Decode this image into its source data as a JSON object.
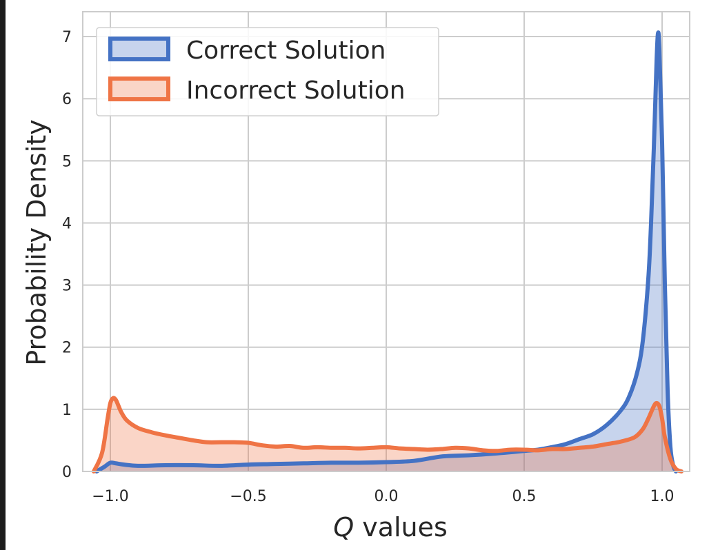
{
  "chart_data": {
    "type": "area",
    "title": "",
    "xlabel_var": "Q",
    "xlabel_rest": " values",
    "ylabel": "Probability Density",
    "xlim": [
      -1.1,
      1.1
    ],
    "ylim": [
      0,
      7.4
    ],
    "xticks": [
      -1.0,
      -0.5,
      0.0,
      0.5,
      1.0
    ],
    "xtick_labels": [
      "−1.0",
      "−0.5",
      "0.0",
      "0.5",
      "1.0"
    ],
    "yticks": [
      0,
      1,
      2,
      3,
      4,
      5,
      6,
      7
    ],
    "ytick_labels": [
      "0",
      "1",
      "2",
      "3",
      "4",
      "5",
      "6",
      "7"
    ],
    "grid": true,
    "legend_position": "top-left",
    "series": [
      {
        "name": "Correct Solution",
        "line_color": "#4472c4",
        "fill_color": "#4472c4",
        "x": [
          -1.05,
          -1.02,
          -1.0,
          -0.98,
          -0.95,
          -0.9,
          -0.8,
          -0.7,
          -0.6,
          -0.5,
          -0.4,
          -0.3,
          -0.2,
          -0.1,
          0.0,
          0.1,
          0.2,
          0.3,
          0.4,
          0.5,
          0.55,
          0.6,
          0.65,
          0.7,
          0.75,
          0.8,
          0.85,
          0.88,
          0.91,
          0.93,
          0.95,
          0.96,
          0.97,
          0.98,
          0.985,
          0.99,
          1.0,
          1.01,
          1.02,
          1.03,
          1.04,
          1.05
        ],
        "y": [
          0.0,
          0.08,
          0.14,
          0.13,
          0.11,
          0.09,
          0.1,
          0.1,
          0.09,
          0.11,
          0.12,
          0.13,
          0.14,
          0.14,
          0.15,
          0.17,
          0.24,
          0.26,
          0.29,
          0.33,
          0.35,
          0.39,
          0.44,
          0.52,
          0.6,
          0.75,
          0.98,
          1.2,
          1.6,
          2.1,
          3.1,
          4.0,
          5.2,
          6.6,
          7.05,
          6.8,
          5.3,
          3.0,
          1.3,
          0.4,
          0.1,
          0.0
        ]
      },
      {
        "name": "Incorrect Solution",
        "line_color": "#ef7445",
        "fill_color": "#ef7445",
        "x": [
          -1.06,
          -1.03,
          -1.01,
          -1.0,
          -0.99,
          -0.98,
          -0.97,
          -0.96,
          -0.94,
          -0.9,
          -0.85,
          -0.8,
          -0.75,
          -0.7,
          -0.65,
          -0.6,
          -0.55,
          -0.5,
          -0.45,
          -0.4,
          -0.35,
          -0.3,
          -0.25,
          -0.2,
          -0.15,
          -0.1,
          -0.05,
          0.0,
          0.05,
          0.1,
          0.15,
          0.2,
          0.25,
          0.3,
          0.35,
          0.4,
          0.45,
          0.5,
          0.55,
          0.6,
          0.65,
          0.7,
          0.75,
          0.8,
          0.85,
          0.9,
          0.93,
          0.95,
          0.97,
          0.98,
          0.99,
          1.0,
          1.01,
          1.03,
          1.05,
          1.07
        ],
        "y": [
          0.0,
          0.3,
          0.85,
          1.1,
          1.18,
          1.15,
          1.05,
          0.95,
          0.82,
          0.7,
          0.63,
          0.58,
          0.54,
          0.5,
          0.47,
          0.47,
          0.47,
          0.46,
          0.42,
          0.4,
          0.41,
          0.38,
          0.39,
          0.38,
          0.38,
          0.37,
          0.38,
          0.39,
          0.37,
          0.36,
          0.35,
          0.36,
          0.38,
          0.37,
          0.34,
          0.33,
          0.35,
          0.35,
          0.34,
          0.36,
          0.36,
          0.38,
          0.4,
          0.44,
          0.48,
          0.55,
          0.68,
          0.85,
          1.05,
          1.1,
          1.05,
          0.85,
          0.55,
          0.2,
          0.04,
          0.0
        ]
      }
    ]
  }
}
